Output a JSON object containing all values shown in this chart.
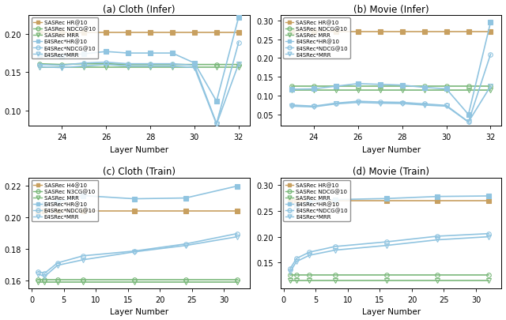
{
  "subplot_a": {
    "title": "(a) Cloth (Infer)",
    "xlabel": "Layer Number",
    "x": [
      23,
      24,
      25,
      26,
      27,
      28,
      29,
      30,
      31,
      32
    ],
    "xlim": [
      22.5,
      32.5
    ],
    "xticks": [
      24,
      26,
      28,
      30,
      32
    ],
    "ylim": [
      0.08,
      0.225
    ],
    "yticks": [
      0.1,
      0.15,
      0.2
    ],
    "legend_loc": "upper left",
    "series": [
      {
        "label": "SASRec HR@10",
        "color": "#c8a060",
        "marker": "s",
        "markersize": 4,
        "linewidth": 1.2,
        "fillstyle": "full",
        "y": [
          0.2025,
          0.2025,
          0.2025,
          0.2025,
          0.2025,
          0.2025,
          0.2025,
          0.2025,
          0.2025,
          0.2025
        ]
      },
      {
        "label": "SASRec NDCG@10",
        "color": "#7ab87a",
        "marker": "o",
        "markersize": 4,
        "linewidth": 1.2,
        "fillstyle": "none",
        "y": [
          0.161,
          0.16,
          0.161,
          0.161,
          0.16,
          0.16,
          0.16,
          0.16,
          0.16,
          0.16
        ]
      },
      {
        "label": "SASRec MRR",
        "color": "#7ab87a",
        "marker": "v",
        "markersize": 4,
        "linewidth": 1.2,
        "fillstyle": "none",
        "y": [
          0.157,
          0.157,
          0.157,
          0.157,
          0.157,
          0.157,
          0.157,
          0.157,
          0.157,
          0.157
        ]
      },
      {
        "label": "E4SRec*HR@10",
        "color": "#90c4e0",
        "marker": "s",
        "markersize": 4,
        "linewidth": 1.2,
        "fillstyle": "full",
        "y": [
          0.172,
          0.171,
          0.174,
          0.177,
          0.175,
          0.175,
          0.175,
          0.162,
          0.112,
          0.222
        ]
      },
      {
        "label": "E4SRec*NDCG@10",
        "color": "#90c4e0",
        "marker": "o",
        "markersize": 4,
        "linewidth": 1.2,
        "fillstyle": "none",
        "y": [
          0.16,
          0.159,
          0.162,
          0.163,
          0.161,
          0.161,
          0.161,
          0.159,
          0.083,
          0.189
        ]
      },
      {
        "label": "E4SRec*MRR",
        "color": "#90c4e0",
        "marker": "v",
        "markersize": 4,
        "linewidth": 1.2,
        "fillstyle": "none",
        "y": [
          0.157,
          0.156,
          0.158,
          0.16,
          0.158,
          0.158,
          0.158,
          0.156,
          0.082,
          0.161
        ]
      }
    ]
  },
  "subplot_b": {
    "title": "(b) Movie (Infer)",
    "xlabel": "Layer Number",
    "x": [
      23,
      24,
      25,
      26,
      27,
      28,
      29,
      30,
      31,
      32
    ],
    "xlim": [
      22.5,
      32.5
    ],
    "xticks": [
      24,
      26,
      28,
      30,
      32
    ],
    "ylim": [
      0.02,
      0.315
    ],
    "yticks": [
      0.05,
      0.1,
      0.15,
      0.2,
      0.25,
      0.3
    ],
    "legend_loc": "upper left",
    "series": [
      {
        "label": "SASRec HR@10",
        "color": "#c8a060",
        "marker": "s",
        "markersize": 4,
        "linewidth": 1.2,
        "fillstyle": "full",
        "y": [
          0.27,
          0.27,
          0.27,
          0.27,
          0.27,
          0.27,
          0.27,
          0.27,
          0.27,
          0.27
        ]
      },
      {
        "label": "SASRec NDCG@10",
        "color": "#7ab87a",
        "marker": "o",
        "markersize": 4,
        "linewidth": 1.2,
        "fillstyle": "none",
        "y": [
          0.125,
          0.125,
          0.125,
          0.125,
          0.125,
          0.125,
          0.125,
          0.125,
          0.125,
          0.125
        ]
      },
      {
        "label": "SASRec MRR",
        "color": "#7ab87a",
        "marker": "v",
        "markersize": 4,
        "linewidth": 1.2,
        "fillstyle": "none",
        "y": [
          0.115,
          0.115,
          0.115,
          0.115,
          0.115,
          0.115,
          0.115,
          0.115,
          0.115,
          0.115
        ]
      },
      {
        "label": "E4SRec*HR@10",
        "color": "#90c4e0",
        "marker": "s",
        "markersize": 4,
        "linewidth": 1.2,
        "fillstyle": "full",
        "y": [
          0.117,
          0.118,
          0.125,
          0.132,
          0.13,
          0.128,
          0.122,
          0.118,
          0.05,
          0.295
        ]
      },
      {
        "label": "E4SRec*NDCG@10",
        "color": "#90c4e0",
        "marker": "o",
        "markersize": 4,
        "linewidth": 1.2,
        "fillstyle": "none",
        "y": [
          0.075,
          0.072,
          0.08,
          0.085,
          0.083,
          0.082,
          0.078,
          0.074,
          0.03,
          0.21
        ]
      },
      {
        "label": "E4SRec*MRR",
        "color": "#90c4e0",
        "marker": "v",
        "markersize": 4,
        "linewidth": 1.2,
        "fillstyle": "none",
        "y": [
          0.072,
          0.07,
          0.078,
          0.082,
          0.08,
          0.079,
          0.075,
          0.072,
          0.03,
          0.125
        ]
      }
    ]
  },
  "subplot_c": {
    "title": "(c) Cloth (Train)",
    "xlabel": "Layer Number",
    "x": [
      1,
      2,
      4,
      8,
      16,
      24,
      32
    ],
    "xlim": [
      -0.5,
      34
    ],
    "xticks": [
      0,
      5,
      10,
      15,
      20,
      25,
      30
    ],
    "ylim": [
      0.155,
      0.225
    ],
    "yticks": [
      0.16,
      0.18,
      0.2,
      0.22
    ],
    "legend_loc": "upper left",
    "series": [
      {
        "label": "SASRec H4@10",
        "color": "#c8a060",
        "marker": "s",
        "markersize": 4,
        "linewidth": 1.2,
        "fillstyle": "full",
        "y": [
          0.204,
          0.204,
          0.204,
          0.204,
          0.204,
          0.204,
          0.204
        ]
      },
      {
        "label": "SASRec N3CG@10",
        "color": "#7ab87a",
        "marker": "o",
        "markersize": 4,
        "linewidth": 1.2,
        "fillstyle": "none",
        "y": [
          0.1605,
          0.1605,
          0.1605,
          0.1605,
          0.1605,
          0.1605,
          0.1605
        ]
      },
      {
        "label": "SASRec MRR",
        "color": "#7ab87a",
        "marker": "v",
        "markersize": 4,
        "linewidth": 1.2,
        "fillstyle": "none",
        "y": [
          0.159,
          0.159,
          0.159,
          0.159,
          0.159,
          0.159,
          0.159
        ]
      },
      {
        "label": "E4SRec*HR@10",
        "color": "#90c4e0",
        "marker": "s",
        "markersize": 4,
        "linewidth": 1.2,
        "fillstyle": "full",
        "y": [
          0.2075,
          0.2085,
          0.2095,
          0.2135,
          0.2115,
          0.212,
          0.2195
        ]
      },
      {
        "label": "E4SRec*NDCG@10",
        "color": "#90c4e0",
        "marker": "o",
        "markersize": 4,
        "linewidth": 1.2,
        "fillstyle": "none",
        "y": [
          0.1655,
          0.1645,
          0.171,
          0.1755,
          0.1785,
          0.183,
          0.1895
        ]
      },
      {
        "label": "E4SRec*MRR",
        "color": "#90c4e0",
        "marker": "v",
        "markersize": 4,
        "linewidth": 1.2,
        "fillstyle": "none",
        "y": [
          0.164,
          0.1625,
          0.1695,
          0.173,
          0.178,
          0.182,
          0.1875
        ]
      }
    ]
  },
  "subplot_d": {
    "title": "(d) Movie (Train)",
    "xlabel": "Layer Number",
    "x": [
      1,
      2,
      4,
      8,
      16,
      24,
      32
    ],
    "xlim": [
      -0.5,
      34
    ],
    "xticks": [
      0,
      5,
      10,
      15,
      20,
      25,
      30
    ],
    "ylim": [
      0.1,
      0.315
    ],
    "yticks": [
      0.15,
      0.2,
      0.25,
      0.3
    ],
    "legend_loc": "upper left",
    "series": [
      {
        "label": "SASRec HR@10",
        "color": "#c8a060",
        "marker": "s",
        "markersize": 4,
        "linewidth": 1.2,
        "fillstyle": "full",
        "y": [
          0.27,
          0.27,
          0.27,
          0.27,
          0.27,
          0.27,
          0.27
        ]
      },
      {
        "label": "SASRec NDCG@10",
        "color": "#7ab87a",
        "marker": "o",
        "markersize": 4,
        "linewidth": 1.2,
        "fillstyle": "none",
        "y": [
          0.1255,
          0.1255,
          0.1255,
          0.1255,
          0.1255,
          0.1255,
          0.1255
        ]
      },
      {
        "label": "SASRec MRR",
        "color": "#7ab87a",
        "marker": "v",
        "markersize": 4,
        "linewidth": 1.2,
        "fillstyle": "none",
        "y": [
          0.115,
          0.115,
          0.115,
          0.115,
          0.115,
          0.115,
          0.115
        ]
      },
      {
        "label": "E4SRec*HR@10",
        "color": "#90c4e0",
        "marker": "s",
        "markersize": 4,
        "linewidth": 1.2,
        "fillstyle": "full",
        "y": [
          0.245,
          0.26,
          0.268,
          0.272,
          0.274,
          0.278,
          0.279
        ]
      },
      {
        "label": "E4SRec*NDCG@10",
        "color": "#90c4e0",
        "marker": "o",
        "markersize": 4,
        "linewidth": 1.2,
        "fillstyle": "none",
        "y": [
          0.138,
          0.158,
          0.17,
          0.181,
          0.19,
          0.201,
          0.206
        ]
      },
      {
        "label": "E4SRec*MRR",
        "color": "#90c4e0",
        "marker": "v",
        "markersize": 4,
        "linewidth": 1.2,
        "fillstyle": "none",
        "y": [
          0.132,
          0.152,
          0.164,
          0.174,
          0.183,
          0.194,
          0.2
        ]
      }
    ]
  }
}
